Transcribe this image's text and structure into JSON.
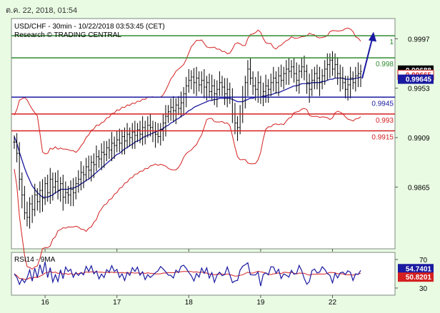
{
  "timestamp": "ต.ค. 22, 2018, 01:54",
  "chart_data": [
    {
      "type": "line",
      "title": "USD/CHF - 30min - 10/22/2018 03:53:45 (CET)",
      "subtitle": "Research © TRADING CENTRAL",
      "xlabel": "",
      "ylabel": "",
      "x_ticks": [
        "16",
        "17",
        "18",
        "19",
        "22"
      ],
      "y_ticks": [
        0.9997,
        0.9953,
        0.9909,
        0.9865
      ],
      "ylim": [
        0.981,
        1.0015
      ],
      "series": [
        {
          "close": [
            0.9905,
            0.9895,
            0.9872,
            0.9858,
            0.9842,
            0.9838,
            0.985,
            0.9845,
            0.9858,
            0.9852,
            0.9862,
            0.9855,
            0.9868,
            0.986,
            0.9872,
            0.9865,
            0.987,
            0.9862,
            0.9868,
            0.9856,
            0.986,
            0.9858,
            0.9863,
            0.986,
            0.9868,
            0.9872,
            0.9878,
            0.9876,
            0.9883,
            0.988,
            0.9887,
            0.9885,
            0.9892,
            0.989,
            0.9896,
            0.9894,
            0.99,
            0.9898,
            0.9904,
            0.9902,
            0.9907,
            0.9904,
            0.991,
            0.9906,
            0.9912,
            0.9909,
            0.9914,
            0.9911,
            0.9916,
            0.9912,
            0.9918,
            0.9915,
            0.992,
            0.9918,
            0.9915,
            0.9912,
            0.991,
            0.9916,
            0.9922,
            0.9928,
            0.9932,
            0.9936,
            0.9933,
            0.9938,
            0.9935,
            0.994,
            0.9948,
            0.9955,
            0.996,
            0.9963,
            0.9958,
            0.9962,
            0.9956,
            0.996,
            0.9954,
            0.9958,
            0.995,
            0.9955,
            0.9948,
            0.9952,
            0.9958,
            0.9954,
            0.9948,
            0.9952,
            0.9945,
            0.993,
            0.9922,
            0.9918,
            0.993,
            0.9945,
            0.9958,
            0.997,
            0.9962,
            0.9955,
            0.9952,
            0.9958,
            0.9945,
            0.995,
            0.9955,
            0.9952,
            0.9958,
            0.9962,
            0.9958,
            0.9964,
            0.996,
            0.9966,
            0.997,
            0.9968,
            0.9972,
            0.9966,
            0.996,
            0.9968,
            0.9972,
            0.9968,
            0.9958,
            0.9952,
            0.996,
            0.9966,
            0.9962,
            0.9958,
            0.9964,
            0.997,
            0.9974,
            0.9978,
            0.997,
            0.9974,
            0.9966,
            0.9962,
            0.9958,
            0.9952,
            0.9956,
            0.9962,
            0.9958,
            0.9964,
            0.9966,
            0.9968
          ]
        },
        {
          "name": "MA",
          "values": [
            0.991,
            0.9904,
            0.9896,
            0.9889,
            0.9882,
            0.9876,
            0.9871,
            0.9866,
            0.9863,
            0.986,
            0.9858,
            0.9856,
            0.9856,
            0.9856,
            0.9857,
            0.9858,
            0.986,
            0.9861,
            0.9863,
            0.9863,
            0.9863,
            0.9863,
            0.9864,
            0.9864,
            0.9865,
            0.9866,
            0.9868,
            0.9869,
            0.9871,
            0.9872,
            0.9874,
            0.9876,
            0.9878,
            0.988,
            0.9882,
            0.9884,
            0.9886,
            0.9888,
            0.989,
            0.9892,
            0.9894,
            0.9895,
            0.9897,
            0.9899,
            0.99,
            0.9902,
            0.9903,
            0.9905,
            0.9906,
            0.9907,
            0.9909,
            0.991,
            0.9911,
            0.9912,
            0.9913,
            0.9914,
            0.9915,
            0.9916,
            0.9917,
            0.9919,
            0.992,
            0.9922,
            0.9923,
            0.9925,
            0.9926,
            0.9928,
            0.9929,
            0.9931,
            0.9933,
            0.9934,
            0.9936,
            0.9937,
            0.9938,
            0.9939,
            0.994,
            0.9941,
            0.9942,
            0.9942,
            0.9943,
            0.9943,
            0.9944,
            0.9944,
            0.9944,
            0.9944,
            0.9944,
            0.9943,
            0.9942,
            0.9941,
            0.9941,
            0.9941,
            0.9942,
            0.9943,
            0.9944,
            0.9944,
            0.9945,
            0.9945,
            0.9945,
            0.9946,
            0.9946,
            0.9947,
            0.9947,
            0.9948,
            0.9949,
            0.9949,
            0.995,
            0.9951,
            0.9952,
            0.9953,
            0.9954,
            0.9955,
            0.9955,
            0.9956,
            0.9957,
            0.9957,
            0.9957,
            0.9957,
            0.9958,
            0.9958,
            0.9958,
            0.9958,
            0.9959,
            0.9959,
            0.996,
            0.9961,
            0.9961,
            0.9962,
            0.9962,
            0.9962,
            0.9962,
            0.9961,
            0.9961,
            0.9961,
            0.9961,
            0.9962,
            0.9962,
            0.9963
          ]
        }
      ],
      "levels": [
        {
          "label": "1",
          "value": 0.99997,
          "color": "#2e8b2e"
        },
        {
          "label": "0.998",
          "value": 0.998,
          "color": "#2e8b2e"
        },
        {
          "label": "0.9945",
          "value": 0.9945,
          "color": "#1a1aa0"
        },
        {
          "label": "0.993",
          "value": 0.993,
          "color": "#d42020"
        },
        {
          "label": "0.9915",
          "value": 0.9915,
          "color": "#d42020"
        }
      ],
      "price_tags": [
        {
          "label": "0.99688",
          "value": 0.99688,
          "bg": "#000000"
        },
        {
          "label": "0.99665",
          "value": 0.99665,
          "bg": "#ffffff",
          "fg": "#d42020"
        },
        {
          "label": "0.99645",
          "value": 0.99645,
          "bg": "#1a1aa0"
        }
      ],
      "arrow_target": 1.0002,
      "colors": {
        "bars": "#000000",
        "ma": "#1a1aa0",
        "bands": "#d42020",
        "background": "#ffffff"
      }
    },
    {
      "type": "line",
      "title": "RSI14 - 9MA",
      "y_ticks": [
        70,
        30
      ],
      "ylim": [
        20,
        80
      ],
      "series": [
        {
          "name": "RSI14",
          "last": 54.7401
        },
        {
          "name": "9MA",
          "last": 50.8201
        }
      ],
      "price_tags": [
        {
          "label": "54.7401",
          "value": 54.7401,
          "bg": "#1a1aa0"
        },
        {
          "label": "50.8201",
          "value": 50.8201,
          "bg": "#d42020"
        }
      ],
      "colors": {
        "rsi": "#1a1aa0",
        "ma": "#d42020"
      }
    }
  ]
}
